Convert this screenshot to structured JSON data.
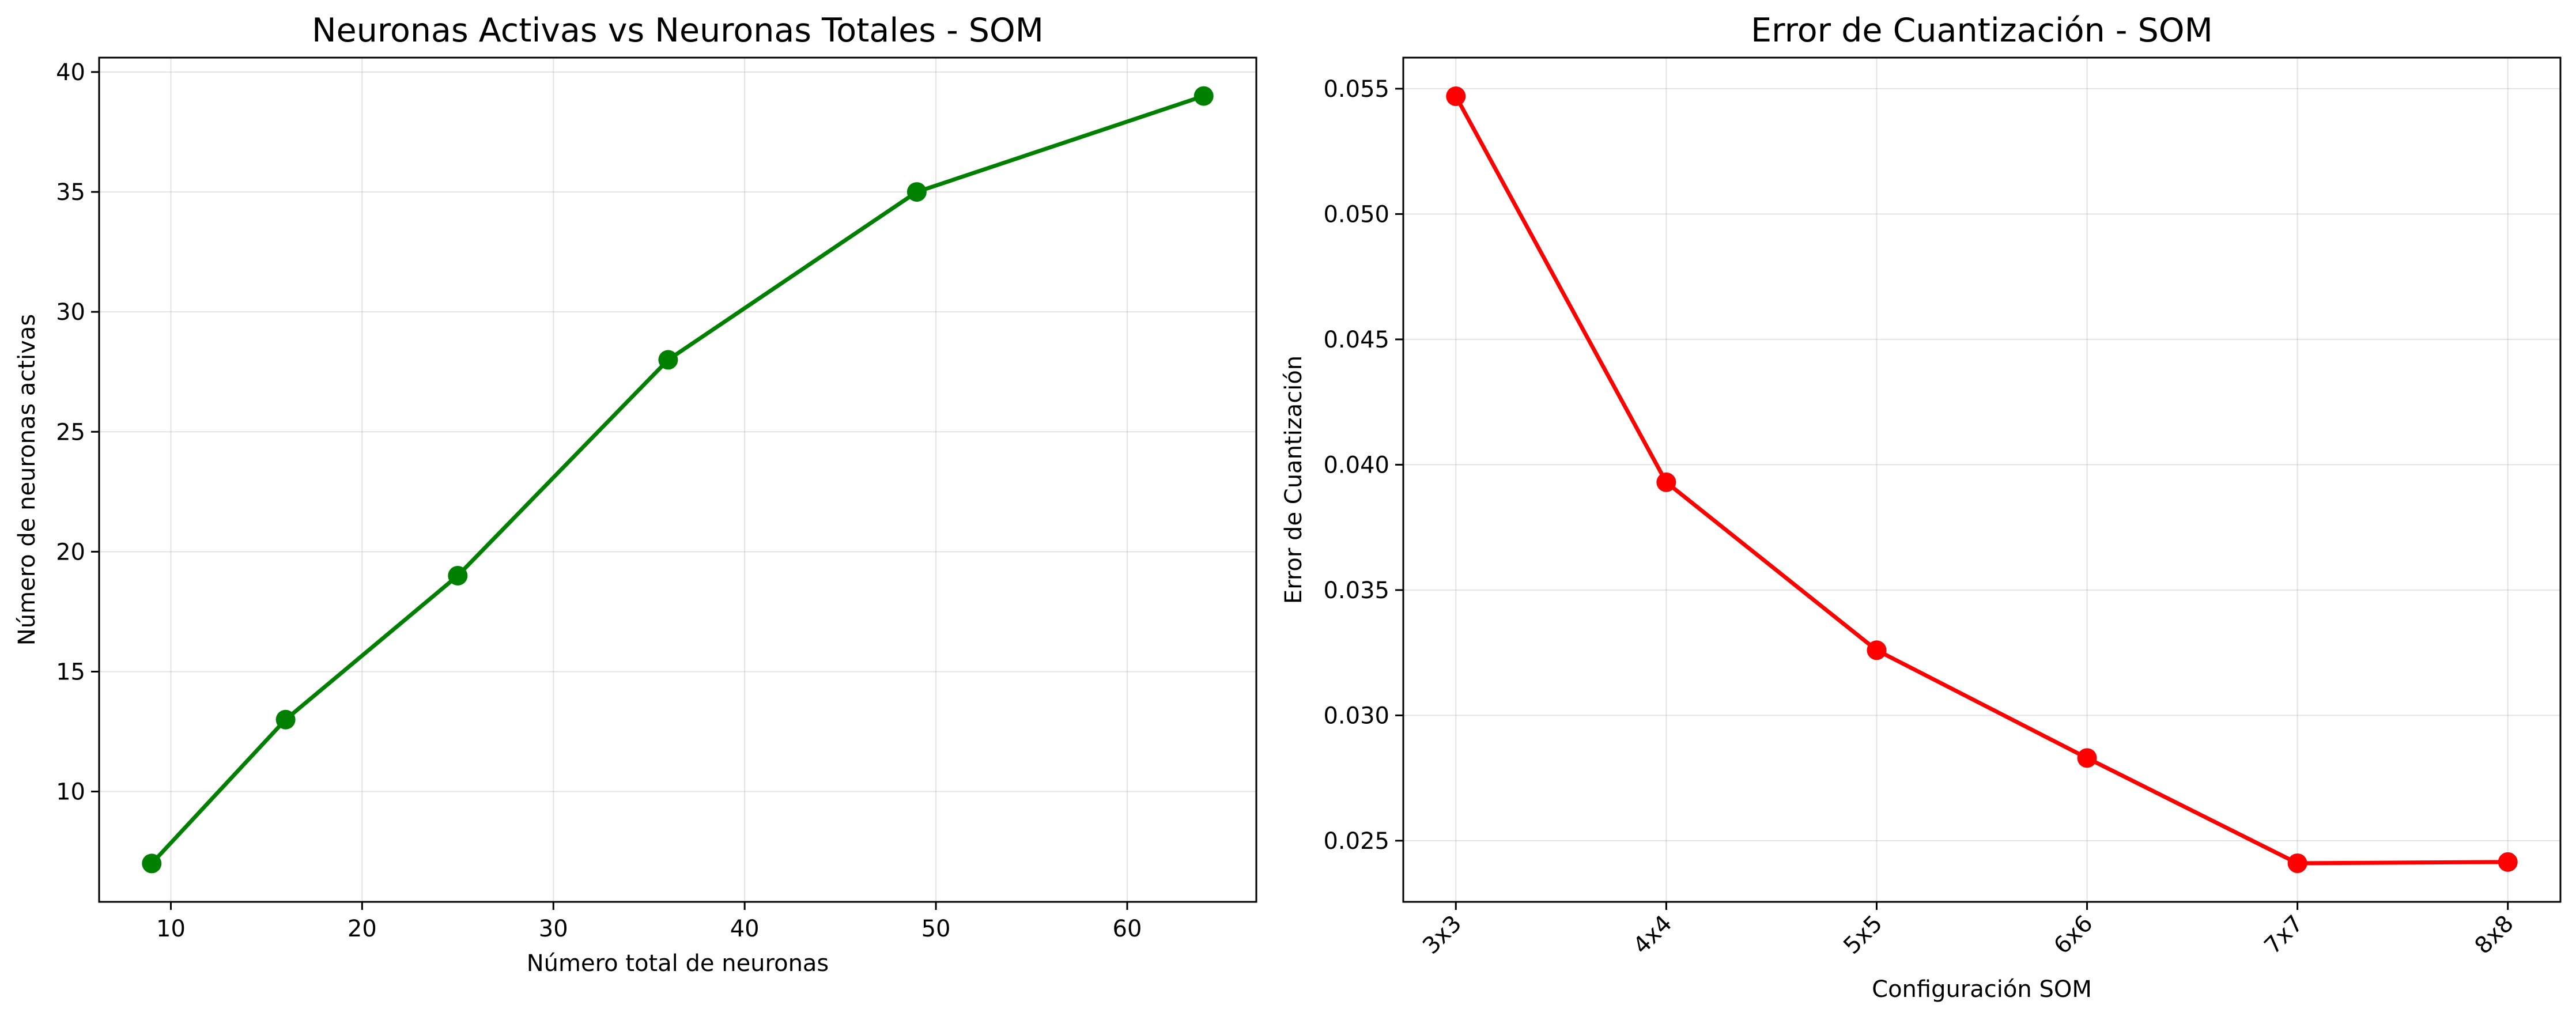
{
  "chart_data": [
    {
      "type": "line",
      "title": "Neuronas Activas vs Neuronas Totales - SOM",
      "xlabel": "Número total de neuronas",
      "ylabel": "Número de neuronas activas",
      "x": [
        9,
        16,
        25,
        36,
        49,
        64
      ],
      "series": [
        {
          "values": [
            7,
            13,
            19,
            28,
            35,
            39
          ],
          "color": "#008000",
          "marker": "circle"
        }
      ],
      "xlim": [
        6.25,
        66.75
      ],
      "ylim": [
        5.4,
        40.6
      ],
      "xticks": [
        10,
        20,
        30,
        40,
        50,
        60
      ],
      "yticks": [
        10,
        15,
        20,
        25,
        30,
        35,
        40
      ],
      "grid": true
    },
    {
      "type": "line",
      "title": "Error de Cuantización - SOM",
      "xlabel": "Configuración SOM",
      "ylabel": "Error de Cuantización",
      "categories": [
        "3x3",
        "4x4",
        "5x5",
        "6x6",
        "7x7",
        "8x8"
      ],
      "series": [
        {
          "values": [
            0.0547,
            0.0393,
            0.0326,
            0.0283,
            0.0241,
            0.02415
          ],
          "color": "#ff0000",
          "marker": "circle"
        }
      ],
      "ylim": [
        0.02256,
        0.05624
      ],
      "yticks": [
        0.025,
        0.03,
        0.035,
        0.04,
        0.045,
        0.05,
        0.055
      ],
      "ytick_labels": [
        "0.025",
        "0.030",
        "0.035",
        "0.040",
        "0.045",
        "0.050",
        "0.055"
      ],
      "xtick_rotation": 45,
      "grid": true
    }
  ]
}
